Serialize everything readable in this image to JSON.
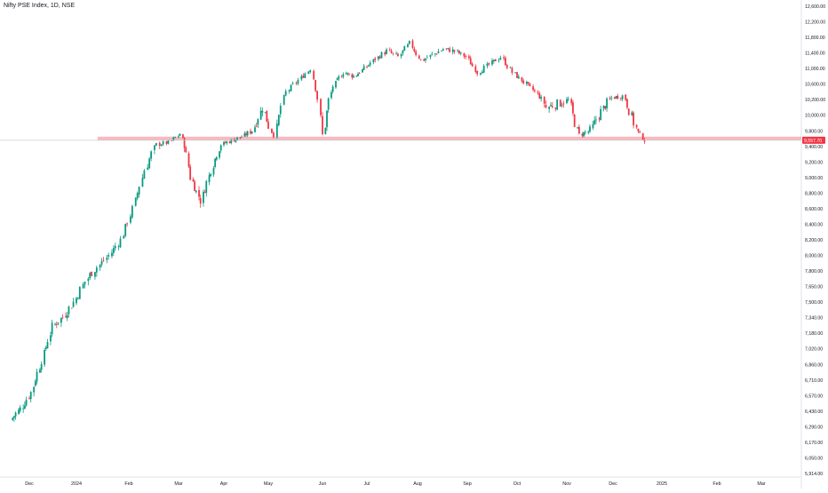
{
  "header": {
    "title": "Nifty PSE Index, 1D, NSE"
  },
  "colors": {
    "up": "#089981",
    "down": "#f23645",
    "zone": "#f7a1ab",
    "price_line": "#c9ccd4",
    "axis_text": "#131722",
    "price_label_bg": "#f23645",
    "price_label_text": "#ffffff"
  },
  "chart_data": {
    "type": "candlestick",
    "title": "Nifty PSE Index, 1D, NSE",
    "ylim": [
      5914,
      12720
    ],
    "price_ticks": [
      "12,600.00",
      "12,200.00",
      "11,800.00",
      "11,400.00",
      "11,000.00",
      "10,600.00",
      "10,200.00",
      "10,000.00",
      "9,800.00",
      "9,400.00",
      "9,200.00",
      "9,000.00",
      "8,800.00",
      "8,600.00",
      "8,400.00",
      "8,200.00",
      "8,000.00",
      "7,800.00",
      "7,650.00",
      "7,500.00",
      "7,340.00",
      "7,180.00",
      "7,020.00",
      "6,860.00",
      "6,710.00",
      "6,570.00",
      "6,430.00",
      "6,290.00",
      "6,170.00",
      "6,050.00",
      "5,914.00"
    ],
    "price_tick_values": [
      12600,
      12200,
      11800,
      11400,
      11000,
      10600,
      10200,
      10000,
      9800,
      9400,
      9200,
      9000,
      8800,
      8600,
      8400,
      8200,
      8000,
      7800,
      7650,
      7500,
      7340,
      7180,
      7020,
      6860,
      6710,
      6570,
      6430,
      6290,
      6170,
      6050,
      5914
    ],
    "time_ticks": [
      "Dec",
      "2024",
      "Feb",
      "Mar",
      "Apr",
      "May",
      "Jun",
      "Jul",
      "Aug",
      "Sep",
      "Oct",
      "Nov",
      "Dec",
      "2025",
      "Feb",
      "Mar"
    ],
    "time_tick_dates": [
      "2023-12-01",
      "2024-01-01",
      "2024-02-01",
      "2024-03-01",
      "2024-04-01",
      "2024-05-01",
      "2024-06-01",
      "2024-07-01",
      "2024-08-01",
      "2024-09-01",
      "2024-10-01",
      "2024-11-01",
      "2024-12-01",
      "2025-01-01",
      "2025-02-01",
      "2025-03-01"
    ],
    "last_price": "9,557.70",
    "last_price_value": 9557.7,
    "support_zone": [
      9560,
      9650
    ],
    "price_series": [
      [
        "2023-11-20",
        6350
      ],
      [
        "2023-11-27",
        6450
      ],
      [
        "2023-12-04",
        6600
      ],
      [
        "2023-12-11",
        6900
      ],
      [
        "2023-12-18",
        7250
      ],
      [
        "2023-12-25",
        7350
      ],
      [
        "2024-01-01",
        7500
      ],
      [
        "2024-01-08",
        7700
      ],
      [
        "2024-01-15",
        7850
      ],
      [
        "2024-01-22",
        8000
      ],
      [
        "2024-01-29",
        8200
      ],
      [
        "2024-02-05",
        8600
      ],
      [
        "2024-02-12",
        9100
      ],
      [
        "2024-02-19",
        9450
      ],
      [
        "2024-02-26",
        9500
      ],
      [
        "2024-03-04",
        9720
      ],
      [
        "2024-03-11",
        9000
      ],
      [
        "2024-03-18",
        8700
      ],
      [
        "2024-03-25",
        9100
      ],
      [
        "2024-04-01",
        9450
      ],
      [
        "2024-04-08",
        9550
      ],
      [
        "2024-04-15",
        9650
      ],
      [
        "2024-04-22",
        9800
      ],
      [
        "2024-04-29",
        10100
      ],
      [
        "2024-05-06",
        9700
      ],
      [
        "2024-05-13",
        10400
      ],
      [
        "2024-05-20",
        10700
      ],
      [
        "2024-05-27",
        11000
      ],
      [
        "2024-06-03",
        9700
      ],
      [
        "2024-06-10",
        10550
      ],
      [
        "2024-06-17",
        10900
      ],
      [
        "2024-06-24",
        10800
      ],
      [
        "2024-07-01",
        11000
      ],
      [
        "2024-07-08",
        11250
      ],
      [
        "2024-07-15",
        11450
      ],
      [
        "2024-07-22",
        11300
      ],
      [
        "2024-07-29",
        11650
      ],
      [
        "2024-08-05",
        11200
      ],
      [
        "2024-08-12",
        11350
      ],
      [
        "2024-08-19",
        11500
      ],
      [
        "2024-08-26",
        11450
      ],
      [
        "2024-09-02",
        11300
      ],
      [
        "2024-09-09",
        10900
      ],
      [
        "2024-09-16",
        11100
      ],
      [
        "2024-09-23",
        11300
      ],
      [
        "2024-09-30",
        10900
      ],
      [
        "2024-10-07",
        10650
      ],
      [
        "2024-10-14",
        10400
      ],
      [
        "2024-10-21",
        10100
      ],
      [
        "2024-10-28",
        10150
      ],
      [
        "2024-11-04",
        10200
      ],
      [
        "2024-11-11",
        9700
      ],
      [
        "2024-11-18",
        9800
      ],
      [
        "2024-11-25",
        10050
      ],
      [
        "2024-12-02",
        10250
      ],
      [
        "2024-12-09",
        10300
      ],
      [
        "2024-12-16",
        9900
      ],
      [
        "2024-12-23",
        9557.7
      ]
    ]
  }
}
